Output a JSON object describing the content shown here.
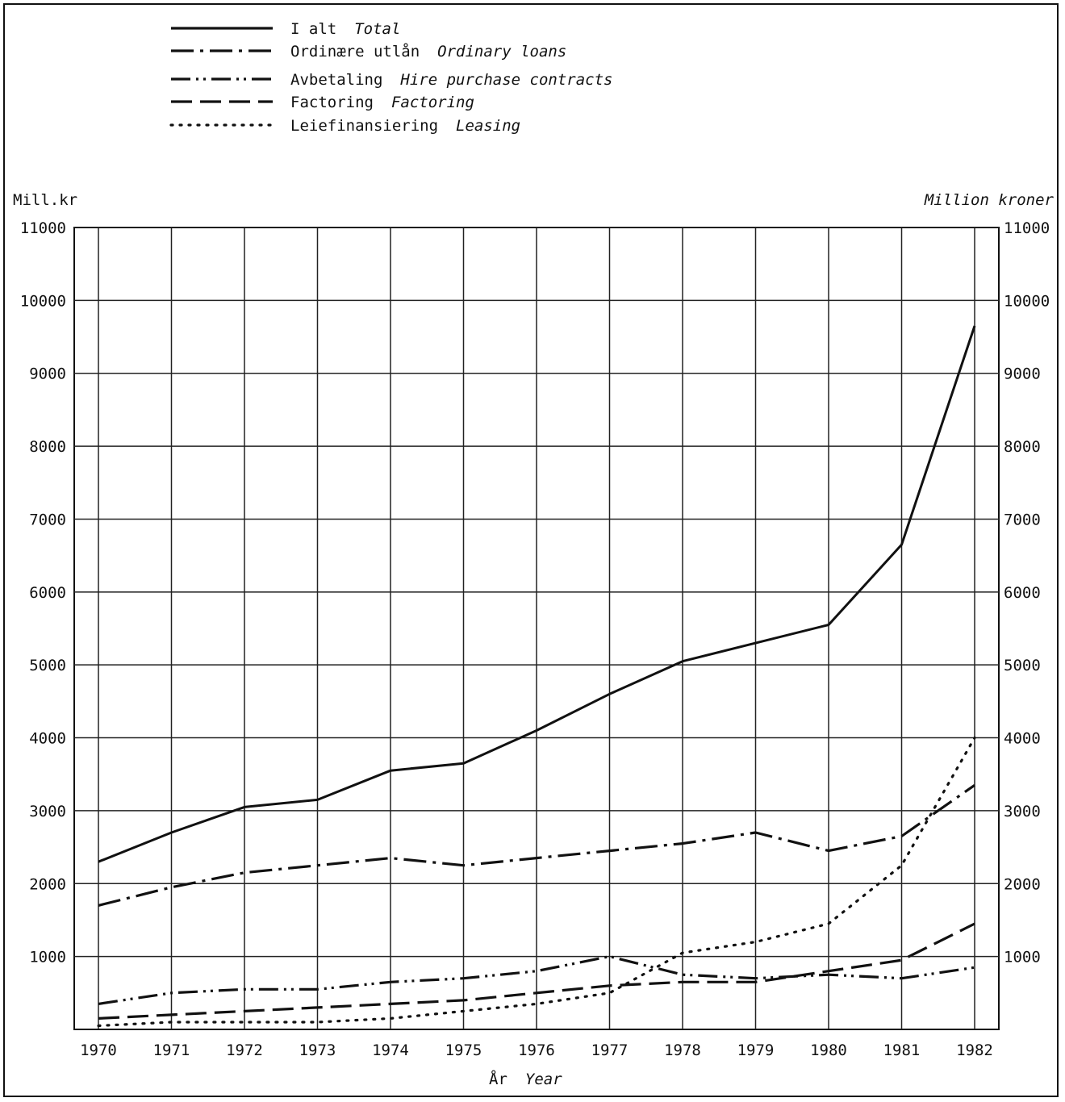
{
  "chart_data": {
    "type": "line",
    "x": [
      1970,
      1971,
      1972,
      1973,
      1974,
      1975,
      1976,
      1977,
      1978,
      1979,
      1980,
      1981,
      1982
    ],
    "x_tick_labels": [
      "1970",
      "1971",
      "1972",
      "1973",
      "1974",
      "1975",
      "1976",
      "1977",
      "1978",
      "1979",
      "1980",
      "1981",
      "1982"
    ],
    "xlabel": "År",
    "xlabel_en": "Year",
    "ylabel_left": "Mill.kr",
    "ylabel_right": "Million kroner",
    "ylim": [
      0,
      11000
    ],
    "yticks": [
      1000,
      2000,
      3000,
      4000,
      5000,
      6000,
      7000,
      8000,
      9000,
      10000,
      11000
    ],
    "y_tick_labels": [
      "1000",
      "2000",
      "3000",
      "4000",
      "5000",
      "6000",
      "7000",
      "8000",
      "9000",
      "10000",
      "11000"
    ],
    "grid": true,
    "legend_position": "top-left",
    "series": [
      {
        "name": "I alt",
        "name_en": "Total",
        "style": "solid",
        "values": [
          2300,
          2700,
          3050,
          3150,
          3550,
          3650,
          4100,
          4600,
          5050,
          5300,
          5550,
          6650,
          9650
        ]
      },
      {
        "name": "Ordinære utlån",
        "name_en": "Ordinary loans",
        "style": "dash-dot",
        "values": [
          1700,
          1950,
          2150,
          2250,
          2350,
          2250,
          2350,
          2450,
          2550,
          2700,
          2450,
          2650,
          3350
        ]
      },
      {
        "name": "Avbetaling",
        "name_en": "Hire purchase contracts",
        "style": "dash-dot-dot",
        "values": [
          350,
          500,
          550,
          550,
          650,
          700,
          800,
          1000,
          750,
          700,
          750,
          700,
          850
        ]
      },
      {
        "name": "Factoring",
        "name_en": "Factoring",
        "style": "dashed",
        "values": [
          150,
          200,
          250,
          300,
          350,
          400,
          500,
          600,
          650,
          650,
          800,
          950,
          1450
        ]
      },
      {
        "name": "Leiefinansiering",
        "name_en": "Leasing",
        "style": "dotted",
        "values": [
          50,
          100,
          100,
          100,
          150,
          250,
          350,
          500,
          1050,
          1200,
          1450,
          2250,
          4000
        ]
      }
    ]
  }
}
